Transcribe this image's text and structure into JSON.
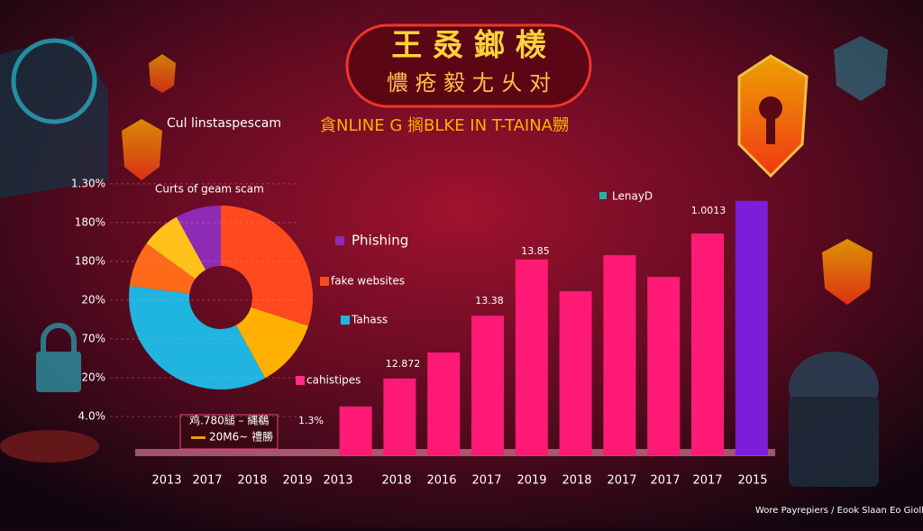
{
  "header": {
    "title": "王 叒 鎯 檨",
    "subtitle": "憹 疮 毅 尢 乆 对",
    "caption": "Cul linstaspescam",
    "headline": "貪NLINE G 搁BLKE IN T-TAINA嬲"
  },
  "footer": {
    "box_line_1": "鸡.780縋 – 縄鵗",
    "box_line_2": "20M6~ 禮勝",
    "credit": "Wore Payrepiers / Eook Slaan Eo Giollk"
  },
  "chart_data": [
    {
      "type": "pie",
      "title": "Curts of geam scam",
      "donut": true,
      "values": [
        30,
        12,
        35,
        8,
        7,
        8
      ],
      "colors": [
        "#ff4a1f",
        "#ffb000",
        "#1fb5e0",
        "#ff6a1a",
        "#ffc21a",
        "#8e2bb5"
      ],
      "legend": [
        {
          "name": "Phishing",
          "color": "#8e2bb5"
        },
        {
          "name": "fake websites",
          "color": "#ff4a1f"
        },
        {
          "name": "Tahass",
          "color": "#1fb5e0"
        },
        {
          "name": "cahistipes",
          "color": "#ff2d8a"
        }
      ]
    },
    {
      "type": "bar",
      "categories": [
        "2013",
        "2017",
        "2018",
        "2019",
        "2013",
        "2018",
        "2016",
        "2017",
        "2019",
        "2018",
        "2017",
        "2017",
        "2017",
        "2015"
      ],
      "values": [
        null,
        null,
        null,
        null,
        1.26,
        1.98,
        2.65,
        3.6,
        5.05,
        4.23,
        5.16,
        4.6,
        5.72,
        6.56
      ],
      "colors": [
        null,
        null,
        null,
        null,
        "#ff1a75",
        "#ff1a75",
        "#ff1a75",
        "#ff1a75",
        "#ff1a75",
        "#ff1a75",
        "#ff1a75",
        "#ff1a75",
        "#ff1a75",
        "#7a1fd6"
      ],
      "ylim": [
        0,
        7.3
      ],
      "yticks": [
        {
          "value": 1,
          "label": "4.0%"
        },
        {
          "value": 2,
          "label": "20%"
        },
        {
          "value": 3,
          "label": "70%"
        },
        {
          "value": 4,
          "label": "20%"
        },
        {
          "value": 5,
          "label": "180%"
        },
        {
          "value": 6,
          "label": "180%"
        },
        {
          "value": 7,
          "label": "1.30%"
        }
      ],
      "grid": true,
      "legend": {
        "name": "LenayD",
        "color": "#1fb5a8"
      },
      "annotations": [
        "1.3%",
        "12.872",
        "13.38",
        "13.85",
        "1.0013"
      ]
    }
  ]
}
